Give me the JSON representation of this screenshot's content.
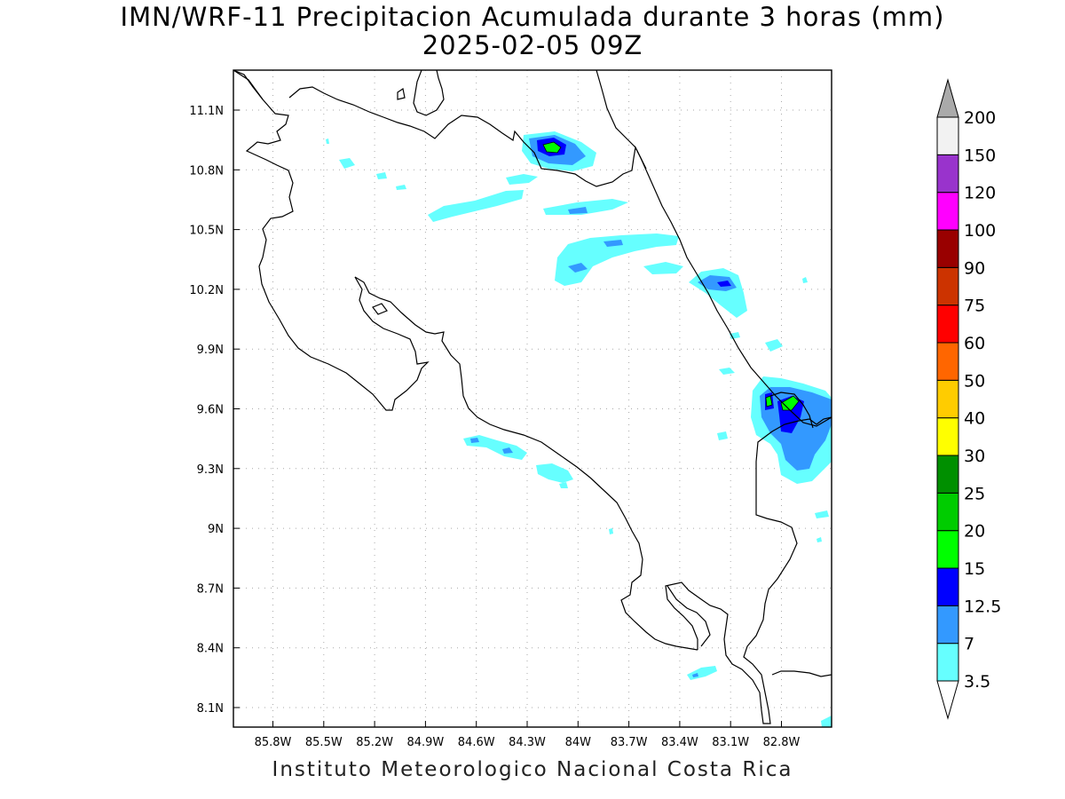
{
  "title": {
    "line1": "IMN/WRF-11 Precipitacion Acumulada durante 3 horas (mm)",
    "line2": "2025-02-05 09Z"
  },
  "footer": "Instituto Meteorologico Nacional Costa Rica",
  "axes": {
    "x_ticks": [
      "85.8W",
      "85.5W",
      "85.2W",
      "84.9W",
      "84.6W",
      "84.3W",
      "84W",
      "83.7W",
      "83.4W",
      "83.1W",
      "82.8W"
    ],
    "y_ticks": [
      "11.1N",
      "10.8N",
      "10.5N",
      "10.2N",
      "9.9N",
      "9.6N",
      "9.3N",
      "9N",
      "8.7N",
      "8.4N",
      "8.1N"
    ],
    "grid": "dotted"
  },
  "colorbar": {
    "labels": [
      "200",
      "150",
      "120",
      "100",
      "90",
      "75",
      "60",
      "50",
      "40",
      "30",
      "25",
      "20",
      "15",
      "12.5",
      "7",
      "3.5"
    ],
    "colors_bottom_to_top": [
      "#66ffff",
      "#3399ff",
      "#0000ff",
      "#00ff00",
      "#00cc00",
      "#008f00",
      "#ffff00",
      "#ffcc00",
      "#ff6600",
      "#ff0000",
      "#cc3300",
      "#990000",
      "#ff00ff",
      "#9933cc",
      "#f2f2f2"
    ],
    "over_arrow_color": "#aaaaaa",
    "under_arrow_color": "#ffffff"
  }
}
